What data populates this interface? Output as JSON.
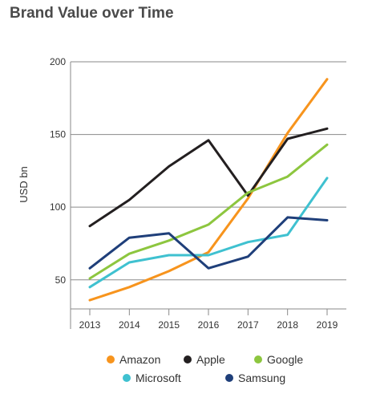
{
  "chart_data": {
    "type": "line",
    "title": "Brand Value over Time",
    "xlabel": "",
    "ylabel": "USD bn",
    "x": [
      "2013",
      "2014",
      "2015",
      "2016",
      "2017",
      "2018",
      "2019"
    ],
    "ylim": [
      30,
      200
    ],
    "yticks": [
      "200",
      "150",
      "100",
      "50"
    ],
    "grid": "horizontal",
    "legend_position": "bottom",
    "series": [
      {
        "name": "Amazon",
        "color": "#f7941d",
        "values": [
          36,
          45,
          56,
          69,
          106,
          151,
          188
        ]
      },
      {
        "name": "Apple",
        "color": "#231f20",
        "values": [
          87,
          105,
          128,
          146,
          108,
          147,
          154
        ]
      },
      {
        "name": "Google",
        "color": "#8dc63f",
        "values": [
          51,
          68,
          77,
          88,
          110,
          121,
          143
        ]
      },
      {
        "name": "Microsoft",
        "color": "#3fc1d0",
        "values": [
          45,
          62,
          67,
          67,
          76,
          81,
          120
        ]
      },
      {
        "name": "Samsung",
        "color": "#1f3f7a",
        "values": [
          58,
          79,
          82,
          58,
          66,
          93,
          91
        ]
      }
    ]
  }
}
